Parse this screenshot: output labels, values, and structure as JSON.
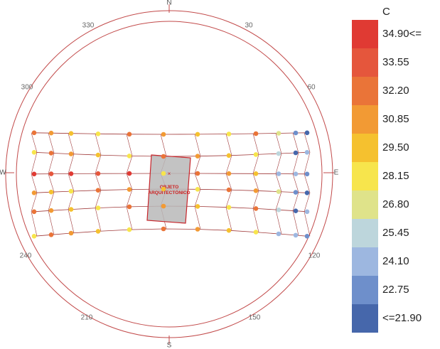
{
  "compass": {
    "north": "N",
    "south": "S",
    "east": "E",
    "west": "W",
    "degrees": [
      "30",
      "60",
      "120",
      "150",
      "210",
      "240",
      "300",
      "330"
    ]
  },
  "object_label": {
    "line1": "OBJETO",
    "line2": "ARQUITECTÓNICO"
  },
  "legend": {
    "unit": "C",
    "labels": [
      "34.90<=",
      "33.55",
      "32.20",
      "30.85",
      "29.50",
      "28.15",
      "26.80",
      "25.45",
      "24.10",
      "22.75",
      "<=21.90"
    ],
    "colors": [
      "#e03a33",
      "#e5563c",
      "#ea7438",
      "#f29a34",
      "#f5c12f",
      "#f7e54c",
      "#dfe38a",
      "#bdd6dc",
      "#9db7e0",
      "#6e8fcb",
      "#4667ab"
    ]
  },
  "colors": {
    "ring": "#c24a4a",
    "path_line": "#a03a3a",
    "object_fill": "#b8b8b8",
    "object_stroke": "#c8242a"
  }
}
